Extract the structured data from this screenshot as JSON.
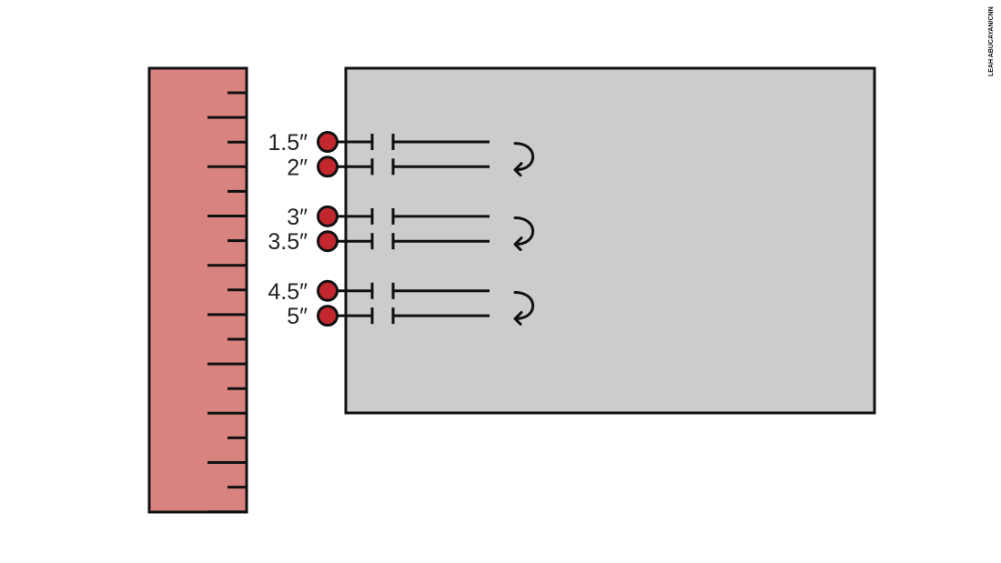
{
  "credit": "LEAH ABUCAYAN/CNN",
  "colors": {
    "ruler": "#d98380",
    "panel": "#cccccc",
    "dot": "#c1272d",
    "stroke": "#111111"
  },
  "ruler": {
    "tick_count": 18
  },
  "marks": [
    {
      "label": "1.5″",
      "value": 1.5
    },
    {
      "label": "2″",
      "value": 2
    },
    {
      "label": "3″",
      "value": 3
    },
    {
      "label": "3.5″",
      "value": 3.5
    },
    {
      "label": "4.5″",
      "value": 4.5
    },
    {
      "label": "5″",
      "value": 5
    }
  ],
  "arrows": [
    "curved-return-arrow-icon",
    "curved-return-arrow-icon",
    "curved-return-arrow-icon"
  ]
}
